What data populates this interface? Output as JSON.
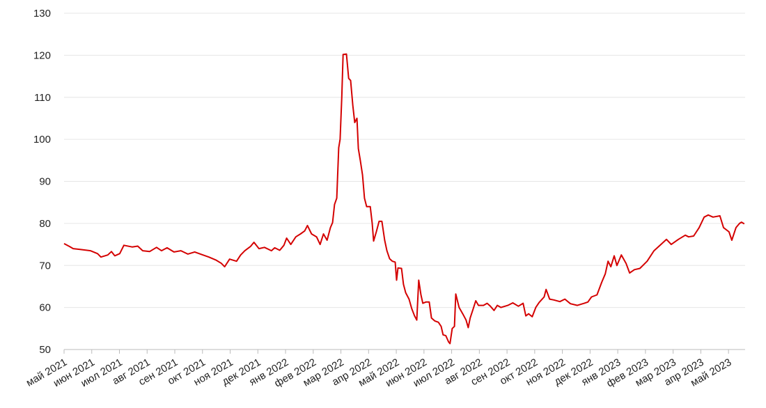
{
  "chart_data": {
    "type": "line",
    "x": [
      0,
      0.2,
      0.33,
      0.58,
      0.95,
      1.21,
      1.33,
      1.58,
      1.71,
      1.83,
      2.01,
      2.16,
      2.46,
      2.66,
      2.84,
      3.09,
      3.34,
      3.52,
      3.72,
      3.97,
      4.22,
      4.47,
      4.72,
      4.97,
      5.23,
      5.48,
      5.68,
      5.8,
      5.98,
      6.23,
      6.38,
      6.53,
      6.73,
      6.86,
      7.04,
      7.24,
      7.49,
      7.61,
      7.79,
      7.94,
      8.04,
      8.19,
      8.37,
      8.54,
      8.69,
      8.79,
      8.94,
      9.12,
      9.25,
      9.37,
      9.5,
      9.62,
      9.7,
      9.77,
      9.85,
      9.92,
      9.97,
      10.03,
      10.08,
      10.2,
      10.28,
      10.35,
      10.43,
      10.5,
      10.58,
      10.63,
      10.7,
      10.78,
      10.85,
      10.93,
      11.06,
      11.13,
      11.18,
      11.28,
      11.38,
      11.48,
      11.58,
      11.66,
      11.76,
      11.86,
      11.96,
      12.01,
      12.06,
      12.19,
      12.26,
      12.34,
      12.46,
      12.56,
      12.66,
      12.74,
      12.81,
      12.89,
      12.96,
      13.07,
      13.19,
      13.27,
      13.39,
      13.52,
      13.62,
      13.69,
      13.79,
      13.89,
      13.94,
      14.02,
      14.1,
      14.15,
      14.27,
      14.4,
      14.52,
      14.6,
      14.67,
      14.77,
      14.87,
      14.97,
      15.15,
      15.28,
      15.4,
      15.53,
      15.65,
      15.78,
      16.03,
      16.21,
      16.41,
      16.58,
      16.68,
      16.78,
      16.91,
      17.04,
      17.16,
      17.34,
      17.41,
      17.54,
      17.69,
      17.91,
      18.09,
      18.29,
      18.54,
      18.79,
      18.92,
      19.05,
      19.25,
      19.42,
      19.55,
      19.65,
      19.75,
      19.87,
      19.97,
      20.13,
      20.3,
      20.43,
      20.6,
      20.8,
      21.06,
      21.31,
      21.56,
      21.76,
      21.93,
      22.19,
      22.44,
      22.56,
      22.74,
      22.94,
      23.12,
      23.27,
      23.44,
      23.69,
      23.82,
      24.02,
      24.12,
      24.27,
      24.4,
      24.47,
      24.57
    ],
    "series": [
      {
        "color": "#d40000",
        "values": [
          75.2,
          74.5,
          74.0,
          73.8,
          73.5,
          72.8,
          72.0,
          72.5,
          73.3,
          72.3,
          72.8,
          74.8,
          74.4,
          74.6,
          73.5,
          73.3,
          74.3,
          73.5,
          74.2,
          73.2,
          73.5,
          72.7,
          73.2,
          72.6,
          72.0,
          71.3,
          70.5,
          69.7,
          71.5,
          71.0,
          72.5,
          73.5,
          74.5,
          75.5,
          74.0,
          74.3,
          73.5,
          74.2,
          73.6,
          74.8,
          76.5,
          75.0,
          76.8,
          77.5,
          78.2,
          79.5,
          77.5,
          76.8,
          75.0,
          77.5,
          76.0,
          79.0,
          80.2,
          84.5,
          86.0,
          98.0,
          100,
          110,
          120.2,
          120.3,
          114.5,
          114,
          108,
          104,
          105,
          97.8,
          95,
          91.5,
          86,
          84,
          84,
          80,
          75.8,
          78,
          80.5,
          80.5,
          76,
          73.5,
          71.6,
          71,
          70.8,
          66.5,
          69.4,
          69.3,
          65.5,
          63.5,
          62,
          59.7,
          58,
          57,
          66.5,
          63,
          61,
          61.3,
          61.3,
          57.5,
          56.8,
          56.5,
          55.5,
          53.5,
          53.3,
          51.8,
          51.4,
          55.0,
          55.5,
          63.2,
          60,
          58.5,
          57,
          55.2,
          57.5,
          59.5,
          61.6,
          60.5,
          60.5,
          61,
          60.3,
          59.3,
          60.5,
          60.0,
          60.5,
          61.1,
          60.3,
          61.0,
          58.0,
          58.5,
          57.8,
          60,
          61.2,
          62.5,
          64.3,
          62,
          61.8,
          61.4,
          62.0,
          60.9,
          60.5,
          61.0,
          61.3,
          62.5,
          63,
          66,
          68,
          71,
          69.7,
          72.3,
          70,
          72.5,
          70.5,
          68.2,
          69.0,
          69.3,
          71,
          73.5,
          75.0,
          76.2,
          75,
          76.2,
          77.2,
          76.8,
          77.0,
          79,
          81.5,
          82.0,
          81.5,
          81.8,
          79,
          78.0,
          76.0,
          79.0,
          80.0,
          80.3,
          79.9
        ]
      }
    ],
    "xlim": [
      0,
      24.6
    ],
    "xticks": [
      {
        "value": 0,
        "label": "май 2021"
      },
      {
        "value": 1,
        "label": "июн 2021"
      },
      {
        "value": 2,
        "label": "июл 2021"
      },
      {
        "value": 3,
        "label": "авг 2021"
      },
      {
        "value": 4,
        "label": "сен 2021"
      },
      {
        "value": 5,
        "label": "окт 2021"
      },
      {
        "value": 6,
        "label": "ноя 2021"
      },
      {
        "value": 7,
        "label": "дек 2021"
      },
      {
        "value": 8,
        "label": "янв 2022"
      },
      {
        "value": 9,
        "label": "фев 2022"
      },
      {
        "value": 10,
        "label": "мар 2022"
      },
      {
        "value": 11,
        "label": "апр 2022"
      },
      {
        "value": 12,
        "label": "май 2022"
      },
      {
        "value": 13,
        "label": "июн 2022"
      },
      {
        "value": 14,
        "label": "июл 2022"
      },
      {
        "value": 15,
        "label": "авг 2022"
      },
      {
        "value": 16,
        "label": "сен 2022"
      },
      {
        "value": 17,
        "label": "окт 2022"
      },
      {
        "value": 18,
        "label": "ноя 2022"
      },
      {
        "value": 19,
        "label": "дек 2022"
      },
      {
        "value": 20,
        "label": "янв 2023"
      },
      {
        "value": 21,
        "label": "фев 2023"
      },
      {
        "value": 22,
        "label": "мар 2023"
      },
      {
        "value": 23,
        "label": "апр 2023"
      },
      {
        "value": 24,
        "label": "май 2023"
      }
    ],
    "ylim": [
      50,
      130
    ],
    "yticks": [
      50,
      60,
      70,
      80,
      90,
      100,
      110,
      120,
      130
    ],
    "grid": true
  }
}
